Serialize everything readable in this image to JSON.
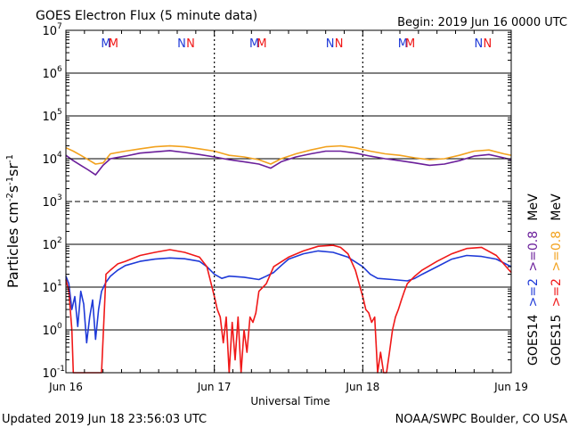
{
  "header": {
    "title": "GOES Electron Flux (5 minute data)",
    "begin": "Begin: 2019 Jun 16 0000 UTC"
  },
  "footer": {
    "updated": "Updated 2019 Jun 18 23:56:03 UTC",
    "credit": "NOAA/SWPC Boulder, CO USA"
  },
  "colors": {
    "goes14_2mev": "#1f3ad8",
    "goes15_2mev": "#f01818",
    "goes14_08mev": "#6a1e9a",
    "goes15_08mev": "#f2a21e"
  },
  "chart_data": {
    "type": "line",
    "title": "GOES Electron Flux (5 minute data)",
    "xlabel": "Universal Time",
    "ylabel": "Particles cm^-2 s^-1 sr^-1",
    "y_scale": "log",
    "ylim": [
      0.1,
      10000000
    ],
    "ytick_mantissa": "10",
    "ytick_exponents": [
      "-1",
      "0",
      "1",
      "2",
      "3",
      "4",
      "5",
      "6",
      "7"
    ],
    "x_ticks": [
      "Jun 16",
      "Jun 17",
      "Jun 18",
      "Jun 19"
    ],
    "x_range_days": [
      0,
      3
    ],
    "magnetopause_markers": [
      {
        "label": "M",
        "color": "#1f3ad8",
        "day": 0.27
      },
      {
        "label": "M",
        "color": "#f01818",
        "day": 0.32
      },
      {
        "label": "N",
        "color": "#1f3ad8",
        "day": 0.78
      },
      {
        "label": "N",
        "color": "#f01818",
        "day": 0.84
      },
      {
        "label": "M",
        "color": "#1f3ad8",
        "day": 1.27
      },
      {
        "label": "M",
        "color": "#f01818",
        "day": 1.32
      },
      {
        "label": "N",
        "color": "#1f3ad8",
        "day": 1.78
      },
      {
        "label": "N",
        "color": "#f01818",
        "day": 1.84
      },
      {
        "label": "M",
        "color": "#1f3ad8",
        "day": 2.27
      },
      {
        "label": "M",
        "color": "#f01818",
        "day": 2.32
      },
      {
        "label": "N",
        "color": "#1f3ad8",
        "day": 2.78
      },
      {
        "label": "N",
        "color": "#f01818",
        "day": 2.84
      }
    ],
    "right_labels": [
      {
        "text": "GOES14",
        "color": "#000000"
      },
      {
        "text": ">=2",
        "color": "#1f3ad8"
      },
      {
        "text": ">=0.8",
        "color": "#6a1e9a"
      },
      {
        "text": "MeV",
        "color": "#000000"
      },
      {
        "text": "GOES15",
        "color": "#000000"
      },
      {
        "text": ">=2",
        "color": "#f01818"
      },
      {
        "text": ">=0.8",
        "color": "#f2a21e"
      },
      {
        "text": "MeV",
        "color": "#000000"
      }
    ],
    "series": [
      {
        "key": "g15_08",
        "color": "#f2a21e",
        "x": [
          0,
          0.05,
          0.1,
          0.15,
          0.2,
          0.25,
          0.3,
          0.4,
          0.5,
          0.6,
          0.7,
          0.8,
          0.9,
          1.0,
          1.1,
          1.2,
          1.3,
          1.38,
          1.45,
          1.55,
          1.65,
          1.75,
          1.85,
          1.95,
          2.05,
          2.15,
          2.25,
          2.35,
          2.45,
          2.55,
          2.65,
          2.75,
          2.85,
          2.95,
          3.0
        ],
        "y": [
          18000,
          15000,
          12000,
          9500,
          7500,
          8000,
          13000,
          15000,
          17000,
          19000,
          20000,
          19000,
          17000,
          15000,
          12000,
          11000,
          9500,
          7500,
          10000,
          13000,
          16000,
          19000,
          20000,
          18000,
          15000,
          13000,
          12000,
          10500,
          9500,
          10000,
          12000,
          15000,
          16000,
          13000,
          12000
        ]
      },
      {
        "key": "g14_08",
        "color": "#6a1e9a",
        "x": [
          0,
          0.05,
          0.1,
          0.15,
          0.2,
          0.25,
          0.3,
          0.4,
          0.5,
          0.6,
          0.7,
          0.8,
          0.9,
          1.0,
          1.1,
          1.2,
          1.3,
          1.38,
          1.45,
          1.55,
          1.65,
          1.75,
          1.85,
          1.95,
          2.05,
          2.15,
          2.25,
          2.35,
          2.45,
          2.55,
          2.65,
          2.75,
          2.85,
          2.95,
          3.0
        ],
        "y": [
          12000,
          9000,
          7000,
          5500,
          4200,
          7000,
          10000,
          11500,
          13500,
          14500,
          15500,
          14000,
          12500,
          11000,
          9500,
          8500,
          7500,
          6000,
          8500,
          11000,
          13000,
          15000,
          15000,
          13500,
          11500,
          10000,
          9000,
          8000,
          7000,
          7500,
          9000,
          11500,
          12500,
          10500,
          9500
        ]
      },
      {
        "key": "g14_2",
        "color": "#1f3ad8",
        "x": [
          0,
          0.02,
          0.04,
          0.06,
          0.08,
          0.1,
          0.12,
          0.14,
          0.16,
          0.18,
          0.2,
          0.22,
          0.24,
          0.27,
          0.3,
          0.35,
          0.4,
          0.5,
          0.6,
          0.7,
          0.8,
          0.9,
          0.95,
          1.0,
          1.05,
          1.1,
          1.2,
          1.3,
          1.35,
          1.4,
          1.45,
          1.5,
          1.6,
          1.7,
          1.8,
          1.9,
          2.0,
          2.05,
          2.1,
          2.2,
          2.3,
          2.35,
          2.4,
          2.5,
          2.6,
          2.7,
          2.8,
          2.9,
          3.0
        ],
        "y": [
          18,
          12,
          3,
          6,
          1.2,
          8,
          4,
          0.5,
          2,
          5,
          0.6,
          3,
          8,
          13,
          18,
          25,
          32,
          40,
          45,
          48,
          46,
          40,
          30,
          20,
          16,
          18,
          17,
          15,
          18,
          22,
          32,
          45,
          60,
          70,
          65,
          50,
          30,
          20,
          16,
          15,
          14,
          16,
          20,
          30,
          45,
          55,
          52,
          45,
          30
        ]
      },
      {
        "key": "g15_2",
        "color": "#f01818",
        "x": [
          0,
          0.02,
          0.04,
          0.05,
          0.06,
          0.08,
          0.1,
          0.12,
          0.14,
          0.16,
          0.18,
          0.2,
          0.22,
          0.24,
          0.27,
          0.3,
          0.35,
          0.4,
          0.5,
          0.6,
          0.7,
          0.8,
          0.9,
          0.95,
          1.0,
          1.02,
          1.04,
          1.06,
          1.08,
          1.1,
          1.12,
          1.14,
          1.16,
          1.18,
          1.2,
          1.22,
          1.24,
          1.26,
          1.28,
          1.3,
          1.35,
          1.4,
          1.5,
          1.6,
          1.7,
          1.8,
          1.85,
          1.9,
          1.95,
          2.0,
          2.02,
          2.04,
          2.06,
          2.08,
          2.1,
          2.12,
          2.14,
          2.16,
          2.18,
          2.2,
          2.22,
          2.24,
          2.26,
          2.28,
          2.3,
          2.35,
          2.4,
          2.5,
          2.6,
          2.7,
          2.8,
          2.9,
          3.0
        ],
        "y": [
          15,
          8,
          1,
          0.1,
          0.1,
          0.1,
          0.1,
          0.1,
          0.1,
          0.1,
          0.1,
          0.1,
          0.1,
          0.1,
          20,
          25,
          35,
          40,
          55,
          65,
          75,
          65,
          50,
          30,
          6,
          3,
          2,
          0.5,
          2,
          0.1,
          1.5,
          0.2,
          2,
          0.1,
          1,
          0.3,
          2,
          1.5,
          2.5,
          8,
          12,
          30,
          50,
          70,
          90,
          95,
          85,
          60,
          25,
          6,
          3,
          2.5,
          1.5,
          2,
          0.1,
          0.3,
          0.1,
          0.1,
          0.3,
          1,
          2,
          3,
          5,
          8,
          12,
          18,
          25,
          40,
          60,
          80,
          85,
          55,
          22
        ]
      }
    ]
  }
}
